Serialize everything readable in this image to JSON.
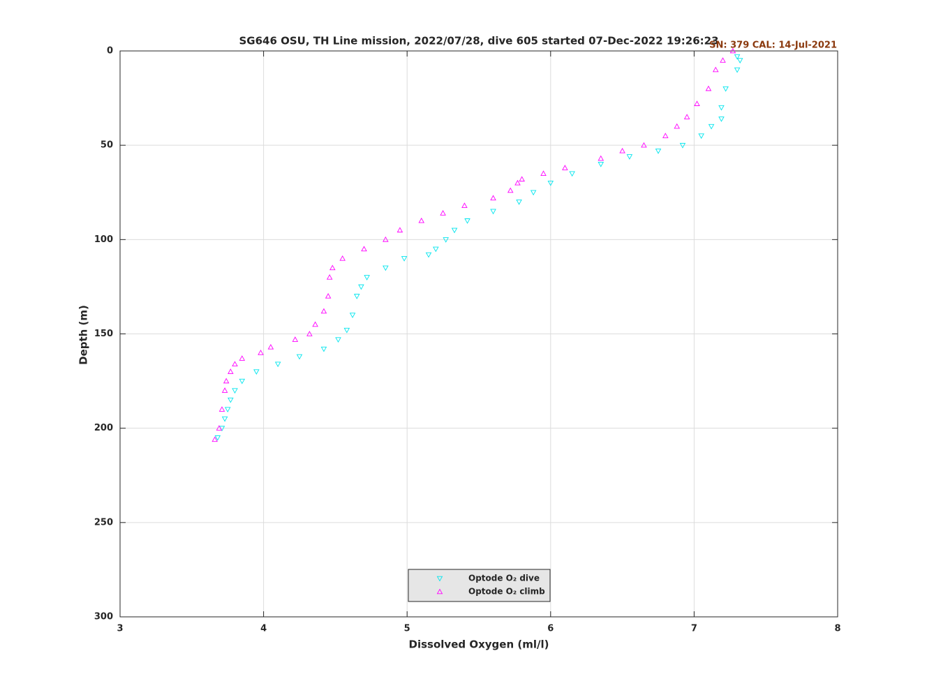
{
  "chart_data": {
    "type": "scatter",
    "title": "SG646 OSU, TH Line mission, 2022/07/28, dive 605 started 07-Dec-2022 19:26:23",
    "annotation": "SN: 379  CAL: 14-Jul-2021",
    "x_label": "Dissolved Oxygen (ml/l)",
    "y_label": "Depth (m)",
    "xlim": [
      3,
      8
    ],
    "xticks": [
      3,
      4,
      5,
      6,
      7,
      8
    ],
    "ylim": [
      0,
      300
    ],
    "yticks": [
      0,
      50,
      100,
      150,
      200,
      250,
      300
    ],
    "y_reversed": true,
    "grid": true,
    "legend": "bottom",
    "series": [
      {
        "name": "Optode O₂ dive",
        "color": "#00e5ee",
        "marker": "down",
        "x": [
          7.3,
          7.32,
          7.3,
          7.22,
          7.19,
          7.19,
          7.12,
          7.05,
          6.92,
          6.75,
          6.55,
          6.35,
          6.15,
          6.0,
          5.88,
          5.78,
          5.6,
          5.42,
          5.33,
          5.27,
          5.2,
          5.15,
          4.98,
          4.85,
          4.72,
          4.68,
          4.65,
          4.62,
          4.58,
          4.52,
          4.42,
          4.25,
          4.1,
          3.95,
          3.85,
          3.8,
          3.77,
          3.75,
          3.73,
          3.71,
          3.68
        ],
        "y": [
          3,
          5,
          10,
          20,
          30,
          36,
          40,
          45,
          50,
          53,
          56,
          60,
          65,
          70,
          75,
          80,
          85,
          90,
          95,
          100,
          105,
          108,
          110,
          115,
          120,
          125,
          130,
          140,
          148,
          153,
          158,
          162,
          166,
          170,
          175,
          180,
          185,
          190,
          195,
          200,
          205
        ]
      },
      {
        "name": "Optode O₂ climb",
        "color": "#ff00ff",
        "marker": "up",
        "x": [
          7.27,
          7.2,
          7.15,
          7.1,
          7.02,
          6.95,
          6.88,
          6.8,
          6.65,
          6.5,
          6.35,
          6.1,
          5.95,
          5.8,
          5.77,
          5.72,
          5.6,
          5.4,
          5.25,
          5.1,
          4.95,
          4.85,
          4.7,
          4.55,
          4.48,
          4.46,
          4.45,
          4.42,
          4.36,
          4.32,
          4.22,
          4.05,
          3.98,
          3.85,
          3.8,
          3.77,
          3.74,
          3.73,
          3.71,
          3.69,
          3.66
        ],
        "y": [
          0,
          5,
          10,
          20,
          28,
          35,
          40,
          45,
          50,
          53,
          57,
          62,
          65,
          68,
          70,
          74,
          78,
          82,
          86,
          90,
          95,
          100,
          105,
          110,
          115,
          120,
          130,
          138,
          145,
          150,
          153,
          157,
          160,
          163,
          166,
          170,
          175,
          180,
          190,
          200,
          206
        ]
      }
    ]
  }
}
